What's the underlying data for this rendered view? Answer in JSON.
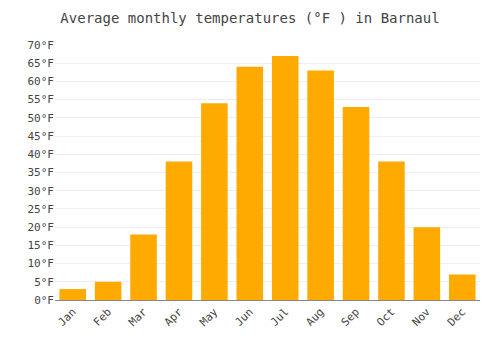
{
  "chart_data": {
    "type": "bar",
    "title": "Average monthly temperatures (°F ) in Barnaul",
    "categories": [
      "Jan",
      "Feb",
      "Mar",
      "Apr",
      "May",
      "Jun",
      "Jul",
      "Aug",
      "Sep",
      "Oct",
      "Nov",
      "Dec"
    ],
    "values": [
      3,
      5,
      18,
      38,
      54,
      64,
      67,
      63,
      53,
      38,
      20,
      7
    ],
    "color": "#FFAA00",
    "ylim": [
      0,
      70
    ],
    "yticks": [
      {
        "value": 0,
        "label": "0°F"
      },
      {
        "value": 5,
        "label": "5°F"
      },
      {
        "value": 10,
        "label": "10°F"
      },
      {
        "value": 15,
        "label": "15°F"
      },
      {
        "value": 20,
        "label": "20°F"
      },
      {
        "value": 25,
        "label": "25°F"
      },
      {
        "value": 30,
        "label": "30°F"
      },
      {
        "value": 35,
        "label": "35°F"
      },
      {
        "value": 40,
        "label": "40°F"
      },
      {
        "value": 45,
        "label": "45°F"
      },
      {
        "value": 50,
        "label": "50°F"
      },
      {
        "value": 55,
        "label": "55°F"
      },
      {
        "value": 60,
        "label": "60°F"
      },
      {
        "value": 65,
        "label": "65°F"
      },
      {
        "value": 70,
        "label": "70°F"
      }
    ],
    "grid": true
  }
}
